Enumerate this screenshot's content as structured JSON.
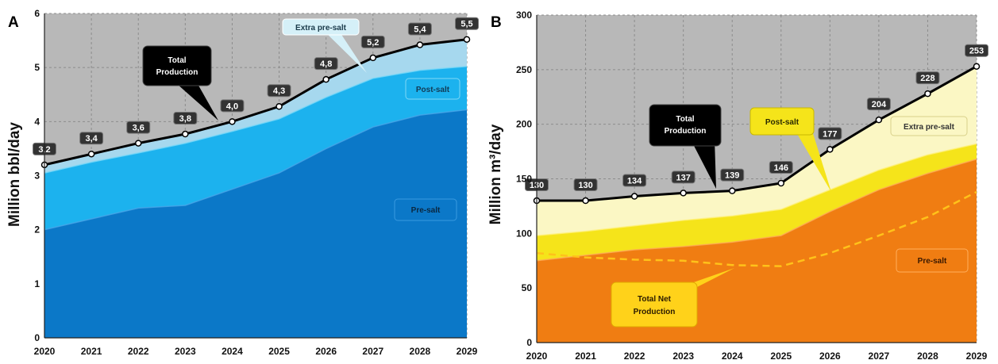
{
  "colors": {
    "plot_bg": "#b8b8b8",
    "grid": "#8c8c8c",
    "pre_salt_A": "#0b78c8",
    "post_salt_A": "#1cb2ee",
    "extra_A": "#a6d8ee",
    "pre_salt_B": "#f07d12",
    "post_salt_B": "#f5e41a",
    "extra_B": "#fbf7c4",
    "net_line": "#ffc21a",
    "total_line": "#000000"
  },
  "chart_data": [
    {
      "panel": "A",
      "type": "area",
      "ylabel": "Million bbl/day",
      "ylim": [
        0,
        6
      ],
      "yticks": [
        "0",
        "1",
        "2",
        "3",
        "4",
        "5",
        "6"
      ],
      "categories": [
        "2020",
        "2021",
        "2022",
        "2023",
        "2024",
        "2025",
        "2026",
        "2027",
        "2028",
        "2029"
      ],
      "grid": true,
      "series": [
        {
          "name": "Pre-salt",
          "values": [
            2.0,
            2.2,
            2.4,
            2.45,
            2.75,
            3.05,
            3.5,
            3.9,
            4.12,
            4.22
          ]
        },
        {
          "name": "Post-salt",
          "values": [
            3.05,
            3.25,
            3.42,
            3.6,
            3.82,
            4.05,
            4.45,
            4.8,
            4.95,
            5.02
          ]
        },
        {
          "name": "Extra pre-salt",
          "values": [
            3.2,
            3.4,
            3.6,
            3.77,
            4.0,
            4.28,
            4.78,
            5.18,
            5.42,
            5.52
          ]
        }
      ],
      "total_production": {
        "name": "Total Production",
        "values": [
          3.2,
          3.4,
          3.6,
          3.77,
          4.0,
          4.28,
          4.78,
          5.18,
          5.42,
          5.52
        ],
        "labels": [
          "3,2",
          "3,4",
          "3,6",
          "3,8",
          "4,0",
          "4,3",
          "4,8",
          "5,2",
          "5,4",
          "5,5"
        ]
      },
      "callouts": {
        "total_line1": "Total",
        "total_line2": "Production",
        "extra": "Extra pre-salt",
        "post": "Post-salt",
        "pre": "Pre-salt"
      }
    },
    {
      "panel": "B",
      "type": "area",
      "ylabel": "Million m³/day",
      "ylim": [
        0,
        300
      ],
      "yticks": [
        "0",
        "50",
        "100",
        "150",
        "200",
        "250",
        "300"
      ],
      "categories": [
        "2020",
        "2021",
        "2022",
        "2023",
        "2024",
        "2025",
        "2026",
        "2027",
        "2028",
        "2029"
      ],
      "grid": true,
      "series": [
        {
          "name": "Pre-salt",
          "values": [
            75,
            80,
            85,
            88,
            92,
            98,
            120,
            140,
            155,
            168
          ]
        },
        {
          "name": "Post-salt",
          "values": [
            98,
            102,
            107,
            112,
            116,
            122,
            140,
            158,
            172,
            182
          ]
        },
        {
          "name": "Extra pre-salt",
          "values": [
            130,
            130,
            134,
            137,
            139,
            146,
            177,
            204,
            228,
            253
          ]
        }
      ],
      "total_production": {
        "name": "Total Production",
        "values": [
          130,
          130,
          134,
          137,
          139,
          146,
          177,
          204,
          228,
          253
        ],
        "labels": [
          "130",
          "130",
          "134",
          "137",
          "139",
          "146",
          "177",
          "204",
          "228",
          "253"
        ]
      },
      "total_net_production": {
        "name": "Total Net Production",
        "values": [
          82,
          78,
          76,
          75,
          71,
          70,
          82,
          98,
          115,
          138
        ]
      },
      "callouts": {
        "total_line1": "Total",
        "total_line2": "Production",
        "post": "Post-salt",
        "extra": "Extra pre-salt",
        "pre": "Pre-salt",
        "net_line1": "Total Net",
        "net_line2": "Production"
      }
    }
  ],
  "panel_labels": [
    "A",
    "B"
  ]
}
